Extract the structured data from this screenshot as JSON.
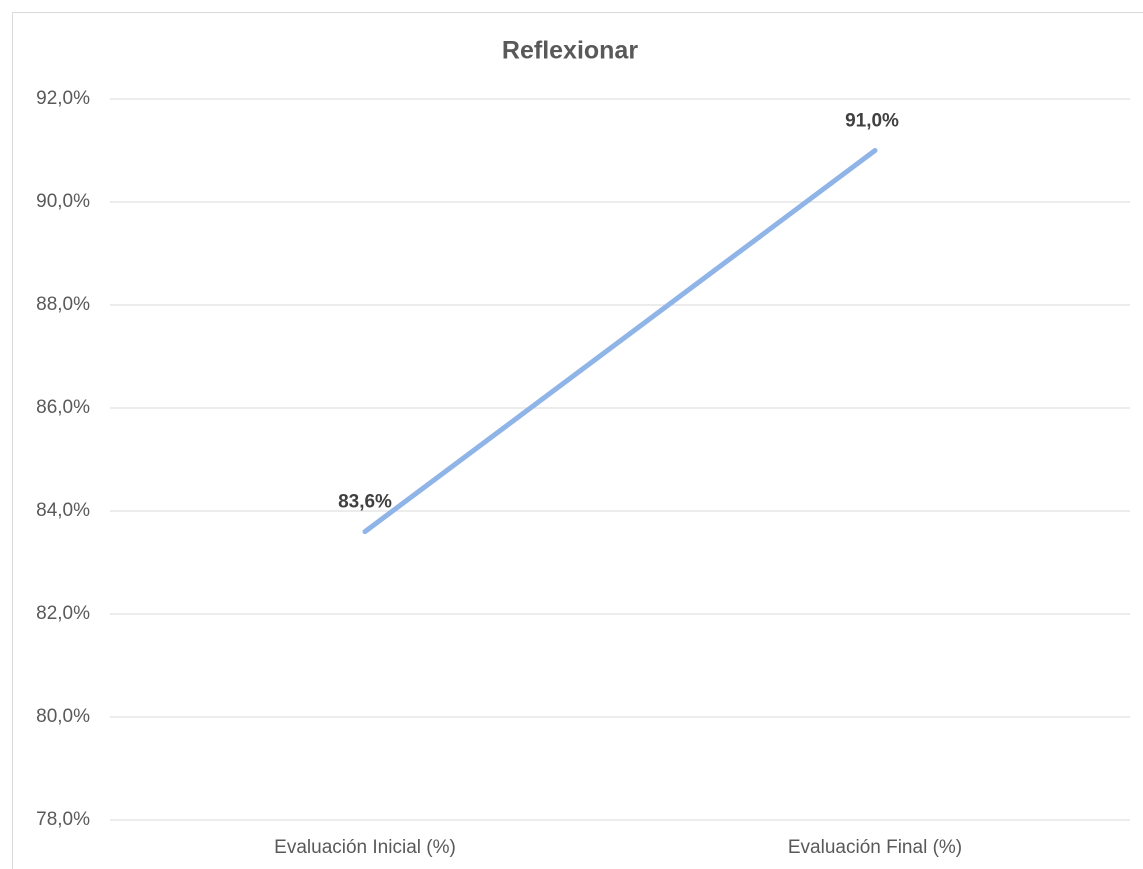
{
  "chart_data": {
    "type": "line",
    "title": "Reflexionar",
    "categories": [
      "Evaluación Inicial (%)",
      "Evaluación Final (%)"
    ],
    "values": [
      83.6,
      91.0
    ],
    "value_labels": [
      "83,6%",
      "91,0%"
    ],
    "color": "#8fb4e8",
    "ylim": [
      78,
      92
    ],
    "yticks": [
      {
        "value": 78,
        "label": "78,0%"
      },
      {
        "value": 80,
        "label": "80,0%"
      },
      {
        "value": 82,
        "label": "82,0%"
      },
      {
        "value": 84,
        "label": "84,0%"
      },
      {
        "value": 86,
        "label": "86,0%"
      },
      {
        "value": 88,
        "label": "88,0%"
      },
      {
        "value": 90,
        "label": "90,0%"
      },
      {
        "value": 92,
        "label": "92,0%"
      }
    ],
    "grid": true
  }
}
